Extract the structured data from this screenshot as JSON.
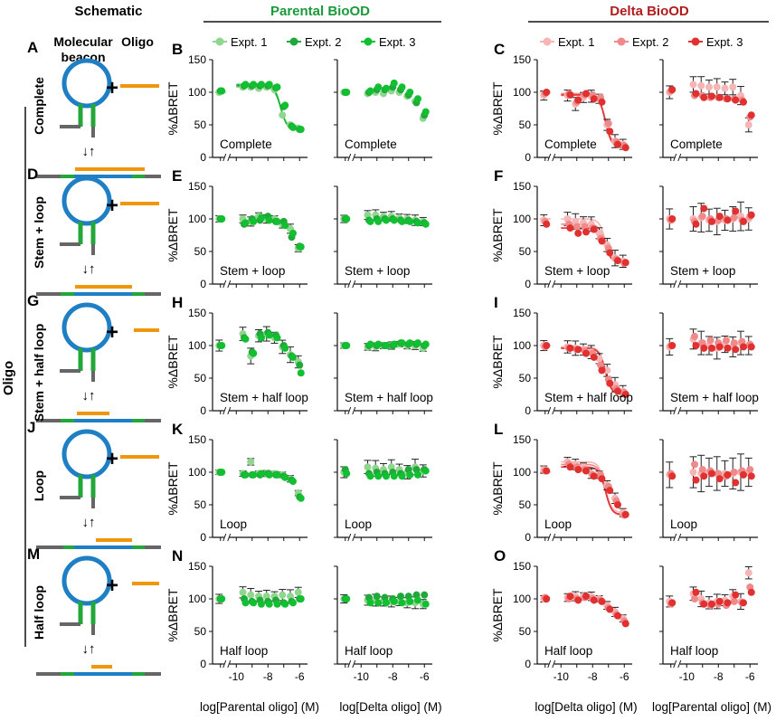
{
  "headers": {
    "schematic": "Schematic",
    "parental": "Parental BioOD",
    "delta": "Delta BioOD"
  },
  "colors": {
    "parental": [
      "#8fd68f",
      "#22a83a",
      "#10c030"
    ],
    "delta": [
      "#f7b5b5",
      "#ee8a8a",
      "#e03030"
    ],
    "parental_title": "#1a9a3a",
    "delta_title": "#b01c1c",
    "beacon_loop": "#1f7fc4",
    "beacon_stem": "#22a83a",
    "oligo": "#f0960a",
    "strand": "#666666"
  },
  "schematic_labels": {
    "beacon": [
      "Molecular",
      "beacon"
    ],
    "oligo": "Oligo",
    "plus": "+",
    "arrows": "↓↑"
  },
  "side_label": "Oligo",
  "legend": {
    "entries": [
      "Expt. 1",
      "Expt. 2",
      "Expt. 3"
    ]
  },
  "axes": {
    "ylabel": "%ΔBRET",
    "yticks": [
      "0",
      "50",
      "100",
      "150"
    ],
    "xticks": [
      "-10",
      "-8",
      "-6"
    ],
    "xlabels": {
      "parental_left": "log[Parental oligo] (M)",
      "parental_right": "log[Delta oligo] (M)",
      "delta_left": "log[Delta oligo] (M)",
      "delta_right": "log[Parental oligo] (M)"
    }
  },
  "rows": [
    {
      "schem_letter": "A",
      "schem_label": "Complete",
      "parental_letter": "B",
      "delta_letter": "C",
      "condition": "Complete"
    },
    {
      "schem_letter": "D",
      "schem_label": "Stem + loop",
      "parental_letter": "E",
      "delta_letter": "F",
      "condition": "Stem + loop"
    },
    {
      "schem_letter": "G",
      "schem_label": "Stem + half loop",
      "parental_letter": "H",
      "delta_letter": "I",
      "condition": "Stem + half loop"
    },
    {
      "schem_letter": "J",
      "schem_label": "Loop",
      "parental_letter": "K",
      "delta_letter": "L",
      "condition": "Loop"
    },
    {
      "schem_letter": "M",
      "schem_label": "Half loop",
      "parental_letter": "N",
      "delta_letter": "O",
      "condition": "Half loop"
    }
  ],
  "chart_data": {
    "type": "scatter",
    "xlim": [
      -11.5,
      -5.5
    ],
    "ylim": [
      0,
      150
    ],
    "control_x": -11,
    "dose_x": [
      -10,
      -9.5,
      -9,
      -8.5,
      -8,
      -7.5,
      -7,
      -6.5,
      -6
    ],
    "panels": [
      {
        "id": "B1",
        "group": "parental",
        "series": [
          [
            100,
            108,
            108,
            106,
            108,
            104,
            65,
            50,
            45
          ],
          [
            102,
            110,
            110,
            110,
            110,
            107,
            78,
            48,
            43
          ],
          [
            102,
            112,
            112,
            112,
            112,
            108,
            80,
            46,
            43
          ]
        ],
        "err": 0,
        "fit": true
      },
      {
        "id": "B2",
        "group": "parental",
        "series": [
          [
            100,
            98,
            100,
            98,
            102,
            100,
            94,
            86,
            60
          ],
          [
            100,
            100,
            104,
            104,
            108,
            104,
            96,
            84,
            65
          ],
          [
            100,
            102,
            108,
            106,
            114,
            108,
            100,
            90,
            70
          ]
        ],
        "err": 0,
        "fit": false
      },
      {
        "id": "C1",
        "group": "delta",
        "series": [
          [
            95,
            95,
            82,
            92,
            94,
            90,
            50,
            25,
            20
          ],
          [
            98,
            98,
            85,
            96,
            96,
            92,
            52,
            24,
            18
          ],
          [
            100,
            96,
            88,
            98,
            90,
            85,
            40,
            20,
            15
          ]
        ],
        "err": 10,
        "fit": true
      },
      {
        "id": "C2",
        "group": "delta",
        "series": [
          [
            100,
            112,
            110,
            108,
            108,
            106,
            108,
            95,
            50
          ],
          [
            102,
            95,
            95,
            92,
            92,
            90,
            90,
            88,
            62
          ],
          [
            104,
            98,
            92,
            94,
            92,
            90,
            88,
            85,
            65
          ]
        ],
        "err": 14,
        "fit": false
      },
      {
        "id": "E1",
        "group": "parental",
        "series": [
          [
            100,
            100,
            96,
            104,
            100,
            100,
            92,
            85,
            55
          ],
          [
            100,
            92,
            100,
            98,
            104,
            96,
            96,
            72,
            58
          ],
          [
            100,
            94,
            96,
            102,
            98,
            96,
            90,
            78,
            57
          ]
        ],
        "err": 7,
        "fit": false
      },
      {
        "id": "E2",
        "group": "parental",
        "series": [
          [
            100,
            106,
            106,
            104,
            104,
            102,
            100,
            98,
            96
          ],
          [
            100,
            98,
            100,
            100,
            100,
            98,
            98,
            96,
            94
          ],
          [
            100,
            96,
            96,
            98,
            98,
            96,
            96,
            94,
            92
          ]
        ],
        "err": 8,
        "fit": false
      },
      {
        "id": "F1",
        "group": "delta",
        "series": [
          [
            98,
            100,
            96,
            94,
            92,
            78,
            60,
            40,
            35
          ],
          [
            96,
            92,
            88,
            88,
            86,
            70,
            55,
            38,
            32
          ],
          [
            92,
            86,
            78,
            80,
            84,
            66,
            48,
            36,
            33
          ]
        ],
        "err": 12,
        "fit": true
      },
      {
        "id": "F2",
        "group": "delta",
        "series": [
          [
            100,
            100,
            102,
            98,
            96,
            98,
            100,
            104,
            100
          ],
          [
            98,
            96,
            104,
            100,
            98,
            100,
            102,
            98,
            104
          ],
          [
            100,
            92,
            116,
            96,
            104,
            98,
            112,
            96,
            106
          ]
        ],
        "err": 22,
        "fit": false
      },
      {
        "id": "H1",
        "group": "parental",
        "series": [
          [
            100,
            118,
            84,
            115,
            118,
            112,
            98,
            86,
            75
          ],
          [
            100,
            112,
            90,
            118,
            120,
            116,
            100,
            84,
            70
          ],
          [
            100,
            110,
            88,
            112,
            116,
            112,
            96,
            82,
            58
          ]
        ],
        "err": 12,
        "fit": false
      },
      {
        "id": "H2",
        "group": "parental",
        "series": [
          [
            100,
            98,
            98,
            100,
            100,
            102,
            100,
            100,
            96
          ],
          [
            100,
            100,
            100,
            100,
            100,
            104,
            102,
            102,
            100
          ],
          [
            100,
            102,
            102,
            100,
            102,
            104,
            104,
            104,
            102
          ]
        ],
        "err": 6,
        "fit": false
      },
      {
        "id": "I1",
        "group": "delta",
        "series": [
          [
            100,
            98,
            96,
            94,
            90,
            80,
            62,
            40,
            30
          ],
          [
            98,
            96,
            94,
            92,
            88,
            70,
            48,
            34,
            28
          ],
          [
            100,
            96,
            94,
            88,
            82,
            62,
            42,
            30,
            25
          ]
        ],
        "err": 11,
        "fit": true
      },
      {
        "id": "I2",
        "group": "delta",
        "series": [
          [
            98,
            110,
            104,
            100,
            96,
            102,
            98,
            104,
            100
          ],
          [
            100,
            114,
            104,
            108,
            104,
            108,
            104,
            106,
            102
          ],
          [
            100,
            100,
            96,
            96,
            98,
            96,
            94,
            98,
            98
          ]
        ],
        "err": 18,
        "fit": false
      },
      {
        "id": "K1",
        "group": "parental",
        "series": [
          [
            100,
            98,
            116,
            98,
            98,
            98,
            96,
            90,
            68
          ],
          [
            100,
            96,
            96,
            96,
            98,
            96,
            94,
            88,
            62
          ],
          [
            100,
            96,
            96,
            98,
            96,
            96,
            92,
            86,
            60
          ]
        ],
        "err": 5,
        "fit": false
      },
      {
        "id": "K2",
        "group": "parental",
        "series": [
          [
            100,
            108,
            106,
            104,
            108,
            104,
            100,
            108,
            102
          ],
          [
            104,
            98,
            100,
            98,
            100,
            98,
            104,
            104,
            104
          ],
          [
            98,
            94,
            94,
            94,
            94,
            94,
            96,
            96,
            102
          ]
        ],
        "err": 12,
        "fit": false
      },
      {
        "id": "L1",
        "group": "delta",
        "series": [
          [
            104,
            116,
            112,
            108,
            98,
            96,
            80,
            60,
            38
          ],
          [
            102,
            112,
            108,
            104,
            96,
            96,
            78,
            56,
            34
          ],
          [
            102,
            108,
            104,
            102,
            94,
            90,
            72,
            50,
            35
          ]
        ],
        "err": 8,
        "fit": true
      },
      {
        "id": "L2",
        "group": "delta",
        "series": [
          [
            96,
            100,
            98,
            100,
            98,
            98,
            98,
            100,
            100
          ],
          [
            98,
            112,
            104,
            102,
            98,
            94,
            100,
            102,
            104
          ],
          [
            94,
            88,
            94,
            98,
            90,
            96,
            84,
            96,
            94
          ]
        ],
        "err": 28,
        "fit": false
      },
      {
        "id": "N1",
        "group": "parental",
        "series": [
          [
            100,
            110,
            106,
            104,
            104,
            104,
            106,
            104,
            110
          ],
          [
            100,
            100,
            96,
            98,
            96,
            98,
            94,
            96,
            100
          ],
          [
            100,
            94,
            94,
            92,
            92,
            92,
            92,
            94,
            100
          ]
        ],
        "err": 10,
        "fit": false
      },
      {
        "id": "N2",
        "group": "parental",
        "series": [
          [
            100,
            98,
            98,
            96,
            96,
            96,
            94,
            94,
            92
          ],
          [
            100,
            102,
            104,
            102,
            100,
            104,
            104,
            106,
            106
          ],
          [
            100,
            94,
            94,
            94,
            96,
            94,
            96,
            98,
            92
          ]
        ],
        "err": 9,
        "fit": false
      },
      {
        "id": "O1",
        "group": "delta",
        "series": [
          [
            100,
            102,
            104,
            104,
            104,
            100,
            90,
            80,
            70
          ],
          [
            102,
            100,
            100,
            102,
            100,
            98,
            86,
            76,
            66
          ],
          [
            100,
            104,
            98,
            104,
            98,
            96,
            84,
            74,
            62
          ]
        ],
        "err": 7,
        "fit": false
      },
      {
        "id": "O2",
        "group": "delta",
        "series": [
          [
            96,
            108,
            100,
            94,
            96,
            98,
            104,
            96,
            140
          ],
          [
            92,
            100,
            94,
            90,
            92,
            90,
            96,
            94,
            118
          ],
          [
            94,
            110,
            92,
            92,
            96,
            94,
            106,
            94,
            110
          ]
        ],
        "err": 12,
        "fit": false
      }
    ]
  }
}
